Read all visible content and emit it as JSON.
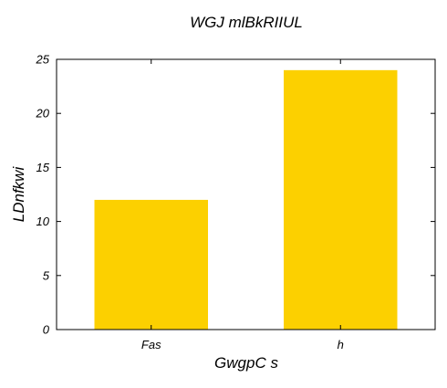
{
  "chart_data": {
    "type": "bar",
    "title": "WGJ mlBkRIIUL",
    "xlabel": "GwgpC s",
    "ylabel": "LDnfkwi",
    "categories": [
      "Fas",
      "h"
    ],
    "values": [
      12,
      24
    ],
    "ylim": [
      0,
      25
    ],
    "yticks": [
      0,
      5,
      10,
      15,
      20,
      25
    ],
    "grid": false,
    "bar_color": "#fcd000"
  }
}
